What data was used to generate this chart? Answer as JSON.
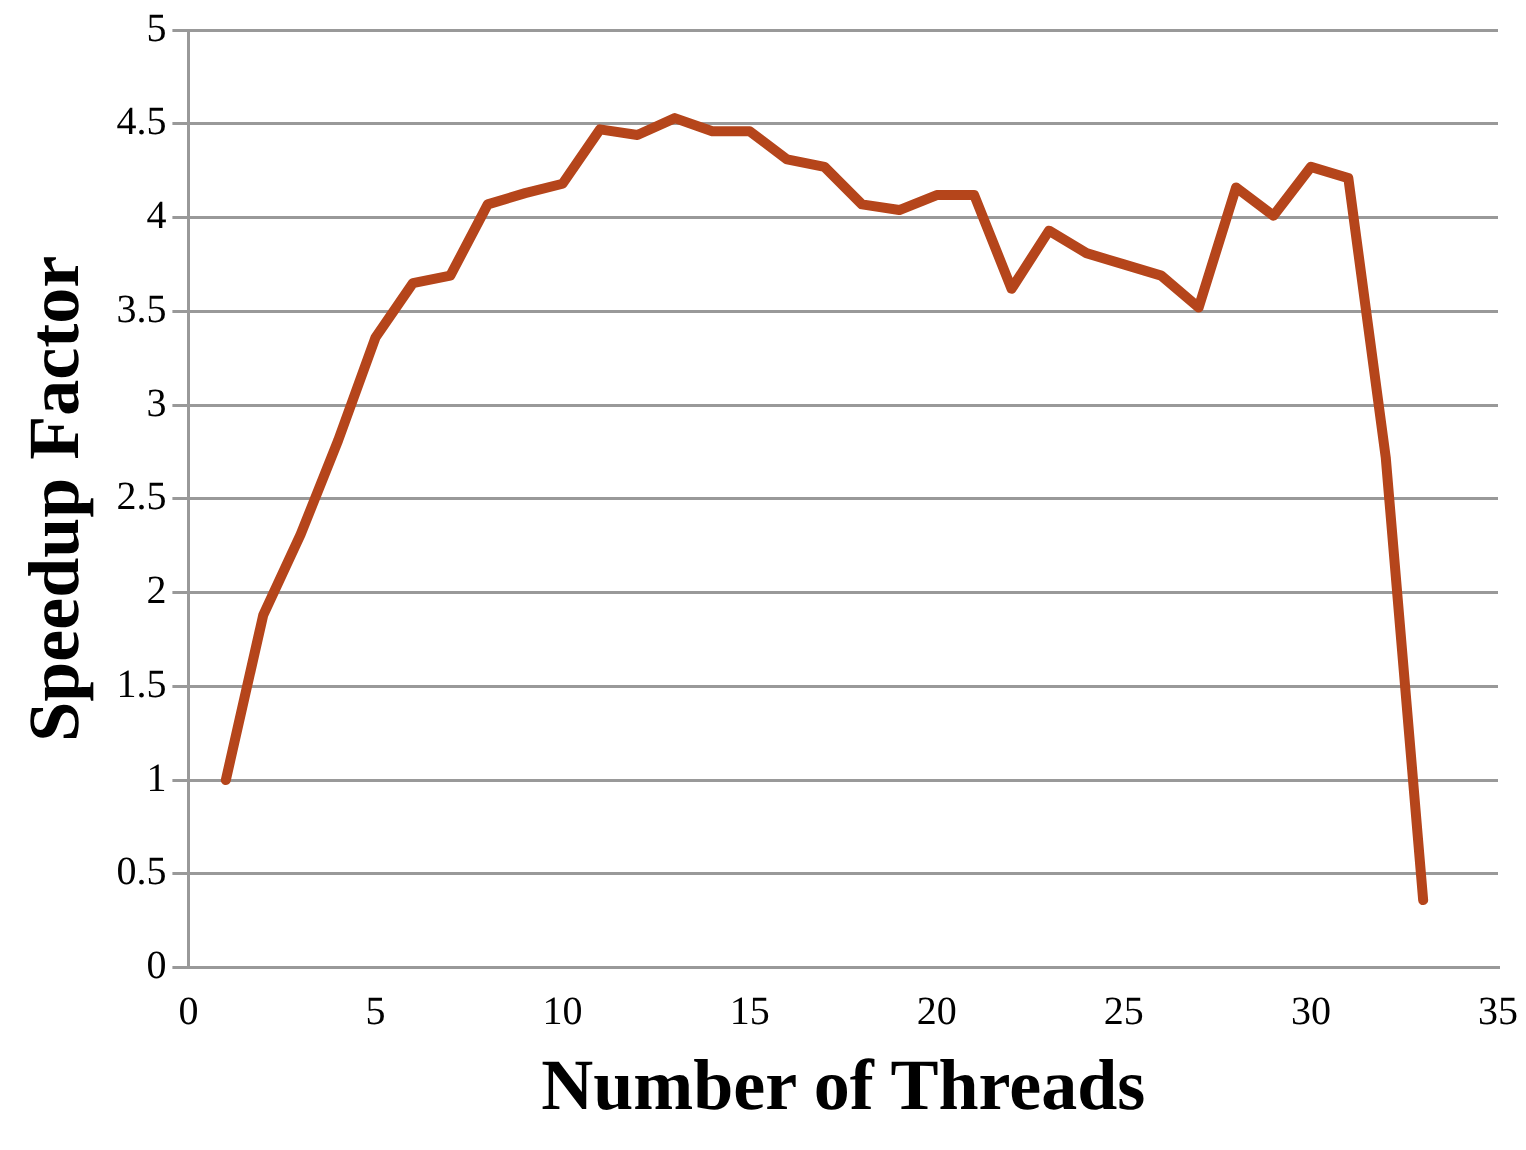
{
  "chart_data": {
    "type": "line",
    "xlabel": "Number of Threads",
    "ylabel": "Speedup Factor",
    "x": [
      1,
      2,
      3,
      4,
      5,
      6,
      7,
      8,
      9,
      10,
      11,
      12,
      13,
      14,
      15,
      16,
      17,
      18,
      19,
      20,
      21,
      22,
      23,
      24,
      25,
      26,
      27,
      28,
      29,
      30,
      31,
      32,
      33
    ],
    "series": [
      {
        "color": "#b5451b",
        "values": [
          1.0,
          1.88,
          2.31,
          2.81,
          3.36,
          3.65,
          3.69,
          4.07,
          4.13,
          4.18,
          4.47,
          4.44,
          4.53,
          4.46,
          4.46,
          4.31,
          4.27,
          4.07,
          4.04,
          4.12,
          4.12,
          3.62,
          3.93,
          3.81,
          3.75,
          3.69,
          3.52,
          4.16,
          4.01,
          4.27,
          4.21,
          2.72,
          0.36
        ]
      }
    ],
    "xlim": [
      0,
      35
    ],
    "xticks": [
      0,
      5,
      10,
      15,
      20,
      25,
      30,
      35
    ],
    "ylim": [
      0,
      5
    ],
    "yticks": [
      0,
      0.5,
      1,
      1.5,
      2,
      2.5,
      3,
      3.5,
      4,
      4.5,
      5
    ],
    "grid": "y",
    "legend": false,
    "marker": "none",
    "line_style": "solid"
  }
}
